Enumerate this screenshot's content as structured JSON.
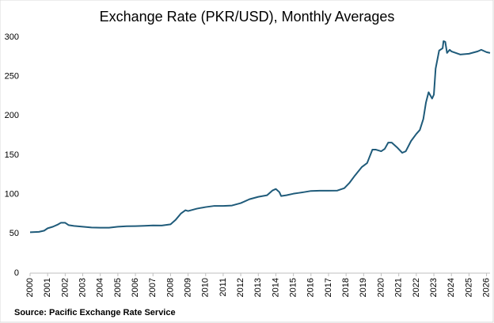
{
  "chart_data": {
    "type": "line",
    "title": "Exchange Rate (PKR/USD), Monthly Averages",
    "source": "Source: Pacific Exchange Rate Service",
    "series": [
      {
        "name": "PKR/USD",
        "color": "#1f5b7a",
        "x": [
          2000.0,
          2000.5,
          2000.8,
          2001.0,
          2001.3,
          2001.6,
          2001.75,
          2002.0,
          2002.2,
          2002.5,
          2003.0,
          2003.5,
          2004.0,
          2004.5,
          2005.0,
          2005.5,
          2006.0,
          2006.5,
          2007.0,
          2007.5,
          2008.0,
          2008.3,
          2008.6,
          2008.85,
          2009.0,
          2009.5,
          2010.0,
          2010.5,
          2011.0,
          2011.5,
          2012.0,
          2012.5,
          2013.0,
          2013.5,
          2013.8,
          2014.0,
          2014.2,
          2014.3,
          2014.6,
          2015.0,
          2015.3,
          2015.6,
          2016.0,
          2016.5,
          2017.0,
          2017.5,
          2017.9,
          2018.2,
          2018.5,
          2018.9,
          2019.2,
          2019.5,
          2019.7,
          2020.0,
          2020.2,
          2020.4,
          2020.6,
          2020.9,
          2021.2,
          2021.4,
          2021.7,
          2022.0,
          2022.2,
          2022.4,
          2022.55,
          2022.7,
          2022.9,
          2023.0,
          2023.1,
          2023.3,
          2023.5,
          2023.55,
          2023.65,
          2023.75,
          2023.9,
          2024.0,
          2024.5,
          2025.0,
          2025.5,
          2025.7,
          2026.0,
          2026.2
        ],
        "values": [
          52,
          52.5,
          54,
          57,
          59,
          62,
          64,
          64,
          61,
          60,
          59,
          58,
          57.8,
          57.8,
          59,
          59.6,
          59.8,
          60.2,
          60.6,
          60.5,
          62,
          68,
          76,
          80,
          79,
          82,
          84,
          85.5,
          85.5,
          86,
          89,
          94,
          97,
          99,
          105,
          107,
          103,
          98,
          99,
          101,
          102,
          103,
          104.5,
          104.8,
          104.8,
          105,
          108,
          115,
          124,
          135,
          140,
          157,
          157,
          155,
          158,
          166,
          166,
          160,
          153,
          155,
          168,
          177,
          182,
          196,
          217,
          230,
          222,
          227,
          260,
          283,
          286,
          295,
          294,
          280,
          284,
          282,
          278,
          279,
          282,
          284,
          281,
          280
        ]
      }
    ],
    "xlim": [
      2000,
      2026.2
    ],
    "xticks": [
      2000,
      2001,
      2002,
      2003,
      2004,
      2005,
      2006,
      2007,
      2008,
      2009,
      2010,
      2011,
      2012,
      2013,
      2014,
      2015,
      2016,
      2017,
      2018,
      2019,
      2020,
      2021,
      2022,
      2023,
      2024,
      2025,
      2026
    ],
    "ylim": [
      0,
      300
    ],
    "yticks": [
      0,
      50,
      100,
      150,
      200,
      250,
      300
    ]
  }
}
